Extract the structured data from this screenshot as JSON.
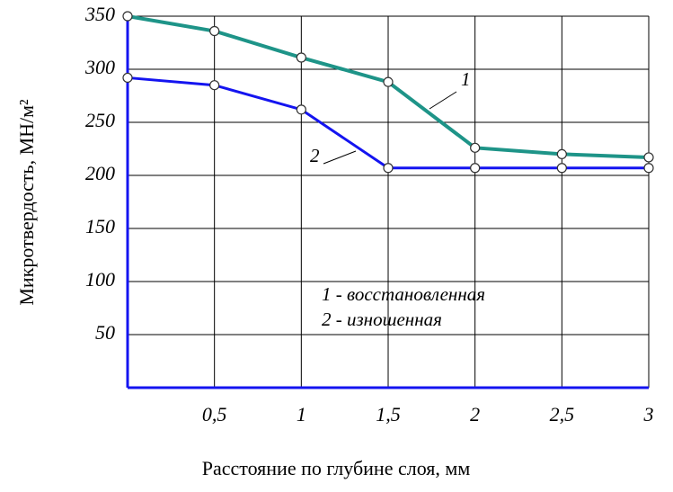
{
  "chart_data": {
    "type": "line",
    "x_label": "Расстояние по глубине слоя, мм",
    "y_label": "Микротвердость, МН/м²",
    "x": [
      0,
      0.5,
      1,
      1.5,
      2,
      2.5,
      3
    ],
    "xlim": [
      0,
      3
    ],
    "xticks": [
      {
        "value": 0.5,
        "label": "0,5"
      },
      1,
      {
        "value": 1.5,
        "label": "1,5"
      },
      2,
      {
        "value": 2.5,
        "label": "2,5"
      },
      3
    ],
    "ylim": [
      0,
      350
    ],
    "yticks": [
      50,
      100,
      150,
      200,
      250,
      300,
      350
    ],
    "grid": true,
    "series": [
      {
        "name": "1 - восстановленная",
        "color": "#1e9488",
        "values": [
          350,
          336,
          311,
          288,
          226,
          220,
          217
        ]
      },
      {
        "name": "2 - изношенная",
        "color": "#1414f0",
        "values": [
          292,
          285,
          262,
          207,
          207,
          207,
          207
        ]
      }
    ],
    "annotations": [
      "1",
      "2"
    ]
  }
}
